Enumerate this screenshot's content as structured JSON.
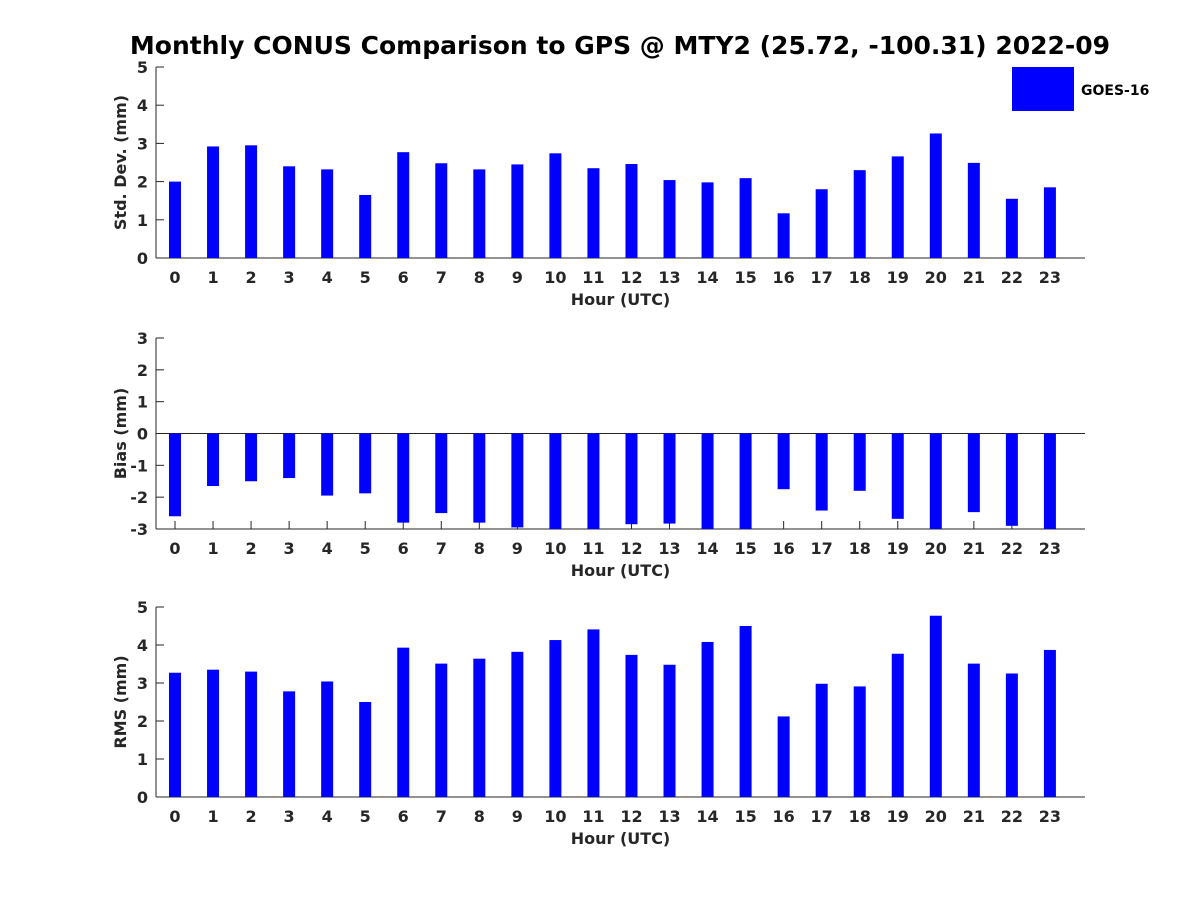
{
  "figure": {
    "title": "Monthly CONUS Comparison to GPS @ MTY2 (25.72, -100.31) 2022-09",
    "legend": {
      "label": "GOES-16",
      "color": "#0000ff",
      "placement": "top-right"
    }
  },
  "chart_data": [
    {
      "type": "bar",
      "title": "",
      "xlabel": "Hour (UTC)",
      "ylabel": "Std. Dev. (mm)",
      "categories": [
        "0",
        "1",
        "2",
        "3",
        "4",
        "5",
        "6",
        "7",
        "8",
        "9",
        "10",
        "11",
        "12",
        "13",
        "14",
        "15",
        "16",
        "17",
        "18",
        "19",
        "20",
        "21",
        "22",
        "23"
      ],
      "series": [
        {
          "name": "GOES-16",
          "color": "#0000ff",
          "values": [
            2.0,
            2.92,
            2.95,
            2.4,
            2.32,
            1.65,
            2.77,
            2.48,
            2.32,
            2.45,
            2.74,
            2.35,
            2.46,
            2.04,
            1.98,
            2.09,
            1.17,
            1.8,
            2.3,
            2.66,
            3.26,
            2.49,
            1.55,
            1.85
          ]
        }
      ],
      "ylim": [
        0,
        5
      ],
      "yticks": [
        "0",
        "1",
        "2",
        "3",
        "4",
        "5"
      ]
    },
    {
      "type": "bar",
      "title": "",
      "xlabel": "Hour (UTC)",
      "ylabel": "Bias (mm)",
      "categories": [
        "0",
        "1",
        "2",
        "3",
        "4",
        "5",
        "6",
        "7",
        "8",
        "9",
        "10",
        "11",
        "12",
        "13",
        "14",
        "15",
        "16",
        "17",
        "18",
        "19",
        "20",
        "21",
        "22",
        "23"
      ],
      "series": [
        {
          "name": "GOES-16",
          "color": "#0000ff",
          "values": [
            -2.6,
            -1.65,
            -1.5,
            -1.4,
            -1.95,
            -1.88,
            -2.8,
            -2.5,
            -2.8,
            -2.95,
            -3.0,
            -3.0,
            -2.85,
            -2.83,
            -3.0,
            -3.0,
            -1.75,
            -2.42,
            -1.8,
            -2.68,
            -3.0,
            -2.47,
            -2.9,
            -3.0
          ]
        }
      ],
      "ylim": [
        -3,
        3
      ],
      "yticks": [
        "-3",
        "-2",
        "-1",
        "0",
        "1",
        "2",
        "3"
      ]
    },
    {
      "type": "bar",
      "title": "",
      "xlabel": "Hour (UTC)",
      "ylabel": "RMS (mm)",
      "categories": [
        "0",
        "1",
        "2",
        "3",
        "4",
        "5",
        "6",
        "7",
        "8",
        "9",
        "10",
        "11",
        "12",
        "13",
        "14",
        "15",
        "16",
        "17",
        "18",
        "19",
        "20",
        "21",
        "22",
        "23"
      ],
      "series": [
        {
          "name": "GOES-16",
          "color": "#0000ff",
          "values": [
            3.27,
            3.35,
            3.3,
            2.78,
            3.04,
            2.5,
            3.93,
            3.51,
            3.64,
            3.82,
            4.13,
            4.41,
            3.74,
            3.48,
            4.08,
            4.5,
            2.12,
            2.98,
            2.91,
            3.77,
            4.77,
            3.51,
            3.25,
            3.87
          ]
        }
      ],
      "ylim": [
        0,
        5
      ],
      "yticks": [
        "0",
        "1",
        "2",
        "3",
        "4",
        "5"
      ]
    }
  ]
}
